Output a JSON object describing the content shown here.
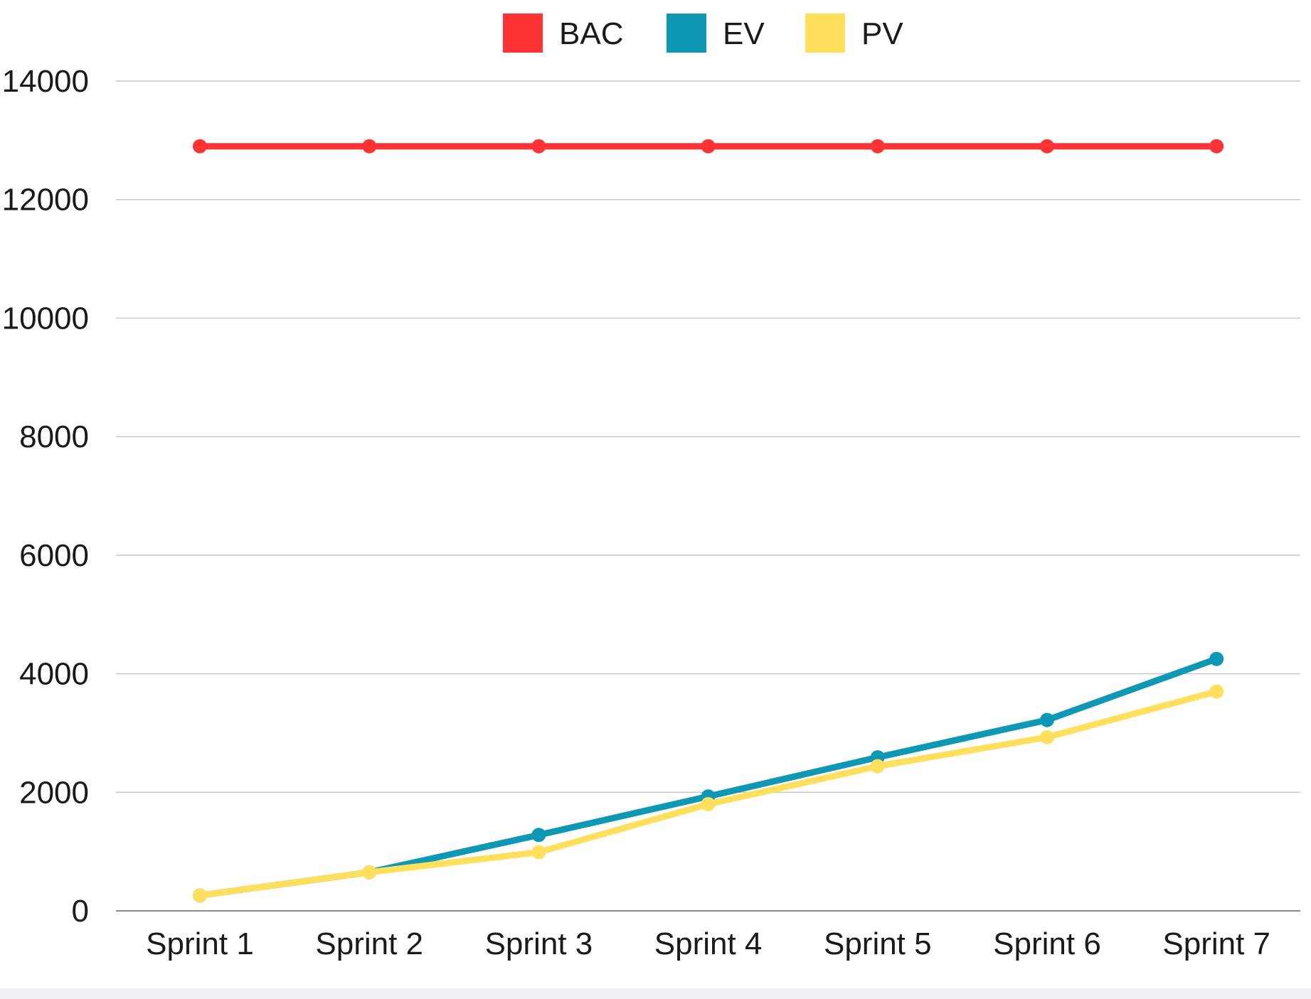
{
  "chart_data": {
    "type": "line",
    "categories": [
      "Sprint 1",
      "Sprint 2",
      "Sprint 3",
      "Sprint 4",
      "Sprint 5",
      "Sprint 6",
      "Sprint 7"
    ],
    "series": [
      {
        "name": "BAC",
        "color": "#ff3333",
        "values": [
          12900,
          12900,
          12900,
          12900,
          12900,
          12900,
          12900
        ]
      },
      {
        "name": "EV",
        "color": "#0f98b3",
        "values": [
          260,
          650,
          1280,
          1930,
          2590,
          3220,
          4250
        ]
      },
      {
        "name": "PV",
        "color": "#ffdf5e",
        "values": [
          260,
          650,
          990,
          1800,
          2440,
          2930,
          3700
        ]
      }
    ],
    "ylim": [
      0,
      14000
    ],
    "yticks": [
      "0",
      "2000",
      "4000",
      "6000",
      "8000",
      "10000",
      "12000",
      "14000"
    ],
    "title": "",
    "xlabel": "",
    "ylabel": "",
    "legend_position": "top-center",
    "grid": true,
    "gridline_color": "#c8c8c8",
    "background_band_color": "#eef0f6"
  }
}
